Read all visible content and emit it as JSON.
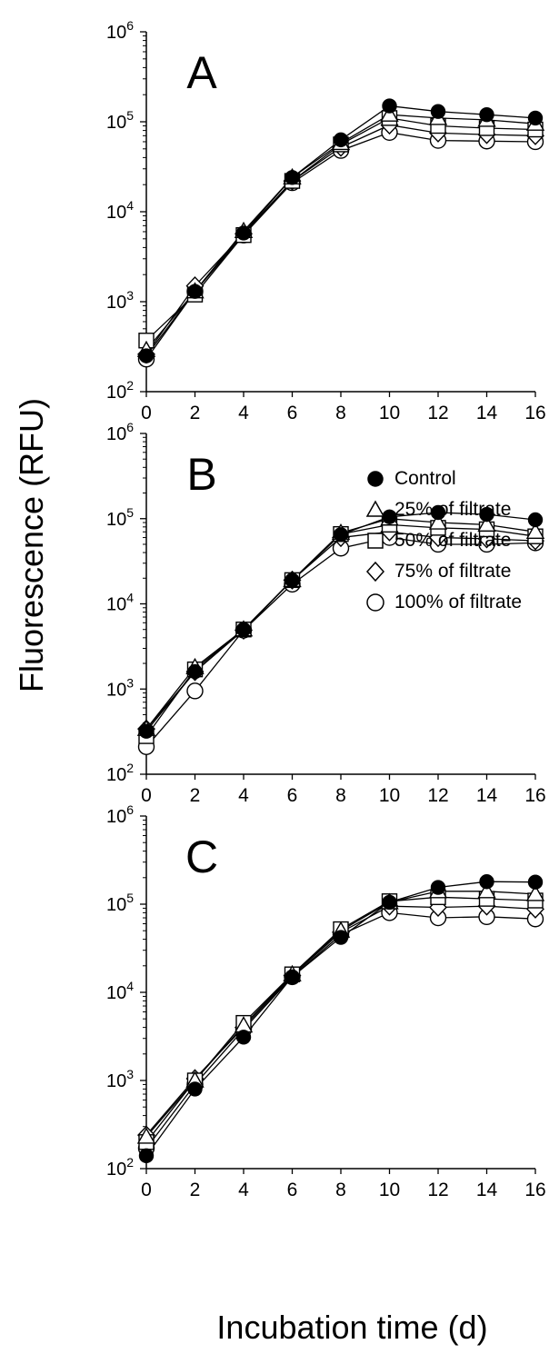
{
  "ylabel": "Fluorescence (RFU)",
  "xlabel": "Incubation time (d)",
  "legend": {
    "placement": "center-right of panel B",
    "entries": [
      {
        "label": "Control",
        "marker": "filled-circle"
      },
      {
        "label": "25% of filtrate",
        "marker": "open-triangle"
      },
      {
        "label": "50% of filtrate",
        "marker": "open-square"
      },
      {
        "label": "75% of filtrate",
        "marker": "open-diamond"
      },
      {
        "label": "100% of filtrate",
        "marker": "open-circle"
      }
    ]
  },
  "colors": {
    "markers": "#000000",
    "fill_open": "#ffffff",
    "axes": "#000000"
  },
  "chart_data": [
    {
      "type": "line",
      "panel_label": "A",
      "x": [
        0,
        2,
        4,
        6,
        8,
        10,
        12,
        14,
        16
      ],
      "xticks": [
        "0",
        "2",
        "4",
        "6",
        "8",
        "10",
        "12",
        "14",
        "16"
      ],
      "xlim": [
        0,
        16
      ],
      "ylim": [
        100,
        1000000
      ],
      "yscale": "log",
      "ytick_exponents": [
        2,
        3,
        4,
        5,
        6
      ],
      "series": [
        {
          "name": "Control",
          "marker": "filled-circle",
          "values": [
            250,
            1300,
            5800,
            24000,
            63000,
            150000,
            130000,
            120000,
            110000
          ]
        },
        {
          "name": "25% of filtrate",
          "marker": "open-triangle",
          "values": [
            290,
            1300,
            6100,
            24000,
            58000,
            120000,
            110000,
            105000,
            95000
          ]
        },
        {
          "name": "50% of filtrate",
          "marker": "open-square",
          "values": [
            370,
            1200,
            5500,
            22000,
            56000,
            110000,
            90000,
            85000,
            82000
          ]
        },
        {
          "name": "75% of filtrate",
          "marker": "open-diamond",
          "values": [
            260,
            1500,
            5700,
            22000,
            52000,
            92000,
            75000,
            72000,
            70000
          ]
        },
        {
          "name": "100% of filtrate",
          "marker": "open-circle",
          "values": [
            230,
            1300,
            5500,
            21000,
            48000,
            76000,
            62000,
            61000,
            60000
          ]
        }
      ]
    },
    {
      "type": "line",
      "panel_label": "B",
      "x": [
        0,
        2,
        4,
        6,
        8,
        10,
        12,
        14,
        16
      ],
      "xticks": [
        "0",
        "2",
        "4",
        "6",
        "8",
        "10",
        "12",
        "14",
        "16"
      ],
      "xlim": [
        0,
        16
      ],
      "ylim": [
        100,
        1000000
      ],
      "yscale": "log",
      "ytick_exponents": [
        2,
        3,
        4,
        5,
        6
      ],
      "series": [
        {
          "name": "Control",
          "marker": "filled-circle",
          "values": [
            320,
            1600,
            5000,
            19000,
            65000,
            105000,
            118000,
            112000,
            97000
          ]
        },
        {
          "name": "25% of filtrate",
          "marker": "open-triangle",
          "values": [
            340,
            1800,
            5000,
            19000,
            68000,
            100000,
            90000,
            85000,
            70000
          ]
        },
        {
          "name": "50% of filtrate",
          "marker": "open-square",
          "values": [
            280,
            1700,
            5000,
            19000,
            66000,
            85000,
            78000,
            75000,
            62000
          ]
        },
        {
          "name": "75% of filtrate",
          "marker": "open-diamond",
          "values": [
            340,
            1600,
            4900,
            19000,
            60000,
            70000,
            60000,
            58000,
            55000
          ]
        },
        {
          "name": "100% of filtrate",
          "marker": "open-circle",
          "values": [
            210,
            950,
            4900,
            17000,
            45000,
            60000,
            50000,
            50000,
            52000
          ]
        }
      ]
    },
    {
      "type": "line",
      "panel_label": "C",
      "x": [
        0,
        2,
        4,
        6,
        8,
        10,
        12,
        14,
        16
      ],
      "xticks": [
        "0",
        "2",
        "4",
        "6",
        "8",
        "10",
        "12",
        "14",
        "16"
      ],
      "xlim": [
        0,
        16
      ],
      "ylim": [
        100,
        1000000
      ],
      "yscale": "log",
      "ytick_exponents": [
        2,
        3,
        4,
        5,
        6
      ],
      "series": [
        {
          "name": "Control",
          "marker": "filled-circle",
          "values": [
            140,
            800,
            3100,
            15000,
            42000,
            105000,
            155000,
            180000,
            178000
          ]
        },
        {
          "name": "25% of filtrate",
          "marker": "open-triangle",
          "values": [
            230,
            1000,
            4200,
            16000,
            50000,
            105000,
            140000,
            140000,
            130000
          ]
        },
        {
          "name": "50% of filtrate",
          "marker": "open-square",
          "values": [
            200,
            1000,
            4500,
            16000,
            52000,
            108000,
            120000,
            115000,
            110000
          ]
        },
        {
          "name": "75% of filtrate",
          "marker": "open-diamond",
          "values": [
            240,
            1050,
            4000,
            15500,
            48000,
            95000,
            92000,
            95000,
            88000
          ]
        },
        {
          "name": "100% of filtrate",
          "marker": "open-circle",
          "values": [
            170,
            900,
            3800,
            15000,
            45000,
            80000,
            70000,
            72000,
            68000
          ]
        }
      ]
    }
  ]
}
